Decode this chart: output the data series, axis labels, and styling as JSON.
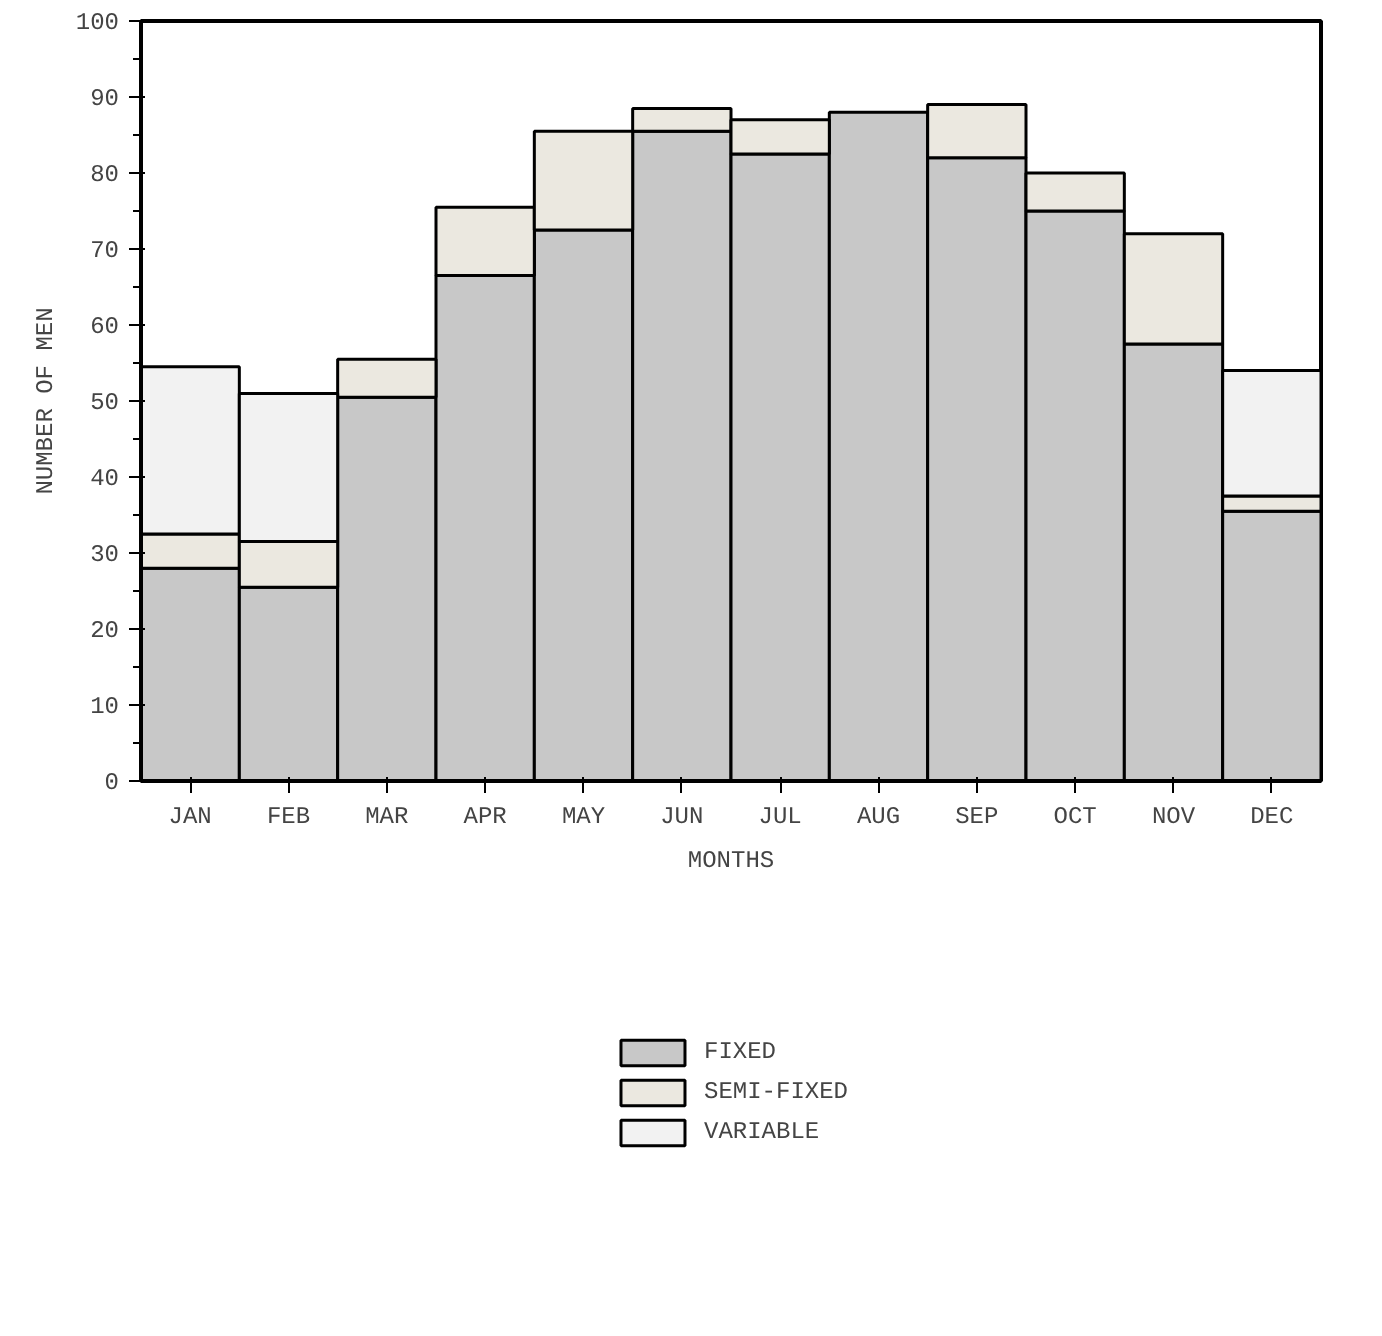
{
  "chart_data": {
    "type": "bar",
    "stacked": true,
    "xlabel": "MONTHS",
    "ylabel": "NUMBER OF MEN",
    "categories": [
      "JAN",
      "FEB",
      "MAR",
      "APR",
      "MAY",
      "JUN",
      "JUL",
      "AUG",
      "SEP",
      "OCT",
      "NOV",
      "DEC"
    ],
    "series": [
      {
        "name": "FIXED",
        "color": "#c8c8c8",
        "values": [
          28,
          25.5,
          50.5,
          66.5,
          72.5,
          85.5,
          82.5,
          88,
          82,
          75,
          57.5,
          35.5
        ]
      },
      {
        "name": "SEMI-FIXED",
        "color": "#ebe8e0",
        "values": [
          4.5,
          6,
          5,
          9,
          13,
          3,
          4.5,
          0,
          7,
          5,
          14.5,
          2
        ]
      },
      {
        "name": "VARIABLE",
        "color": "#f2f2f2",
        "values": [
          22,
          19.5,
          0,
          0,
          0,
          0,
          0,
          0,
          0,
          0,
          0,
          16.5
        ]
      }
    ],
    "ylim": [
      0,
      100
    ],
    "yticks": [
      0,
      10,
      20,
      30,
      40,
      50,
      60,
      70,
      80,
      90,
      100
    ],
    "grid": false,
    "legend": "bottom"
  }
}
